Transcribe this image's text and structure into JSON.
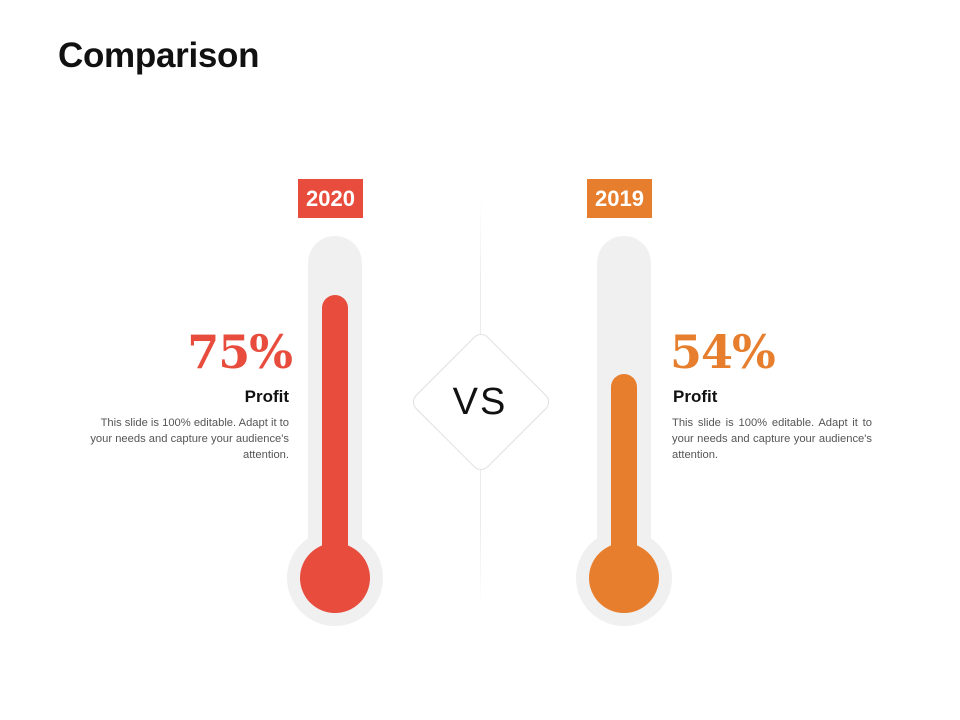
{
  "slide": {
    "title": "Comparison",
    "center_label": "VS"
  },
  "left": {
    "year": "2020",
    "percent": "75%",
    "fill_fraction": 0.75,
    "label": "Profit",
    "description": "This slide is 100% editable. Adapt it to your needs and capture your audience's attention.",
    "color": "#e84c3d"
  },
  "right": {
    "year": "2019",
    "percent": "54%",
    "fill_fraction": 0.54,
    "label": "Profit",
    "description": "This slide is 100% editable. Adapt it to your needs and capture your audience's attention.",
    "color": "#e67e2d"
  },
  "colors": {
    "track": "#f0f0f0",
    "title": "#111111",
    "body_text": "#555555"
  }
}
